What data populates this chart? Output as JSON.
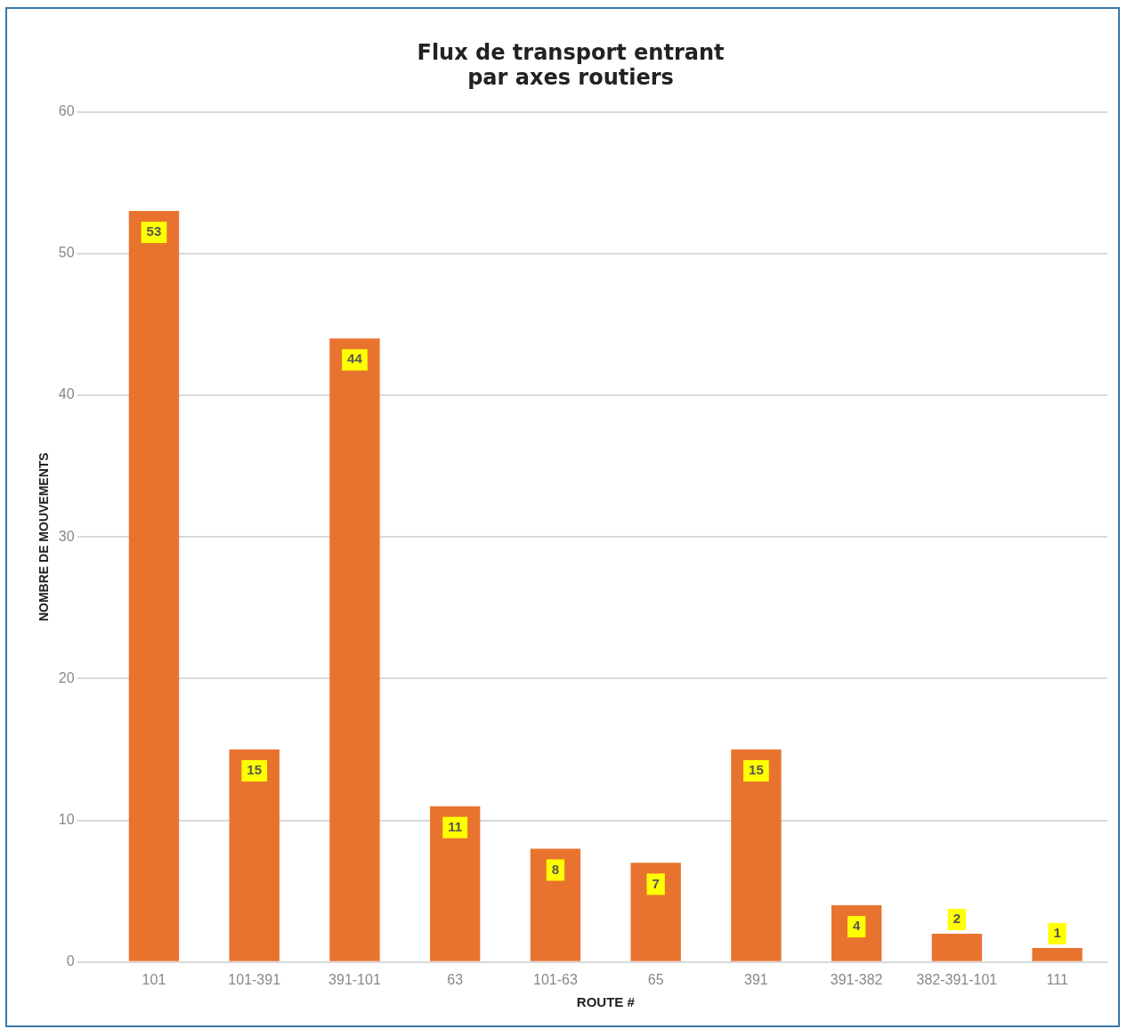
{
  "chart_data": {
    "type": "bar",
    "title": "Flux de transport entrant\npar axes routiers",
    "xlabel": "ROUTE #",
    "ylabel": "NOMBRE DE MOUVEMENTS",
    "categories": [
      "101",
      "101-391",
      "391-101",
      "63",
      "101-63",
      "65",
      "391",
      "391-382",
      "382-391-101",
      "111"
    ],
    "values": [
      53,
      15,
      44,
      11,
      8,
      7,
      15,
      4,
      2,
      1
    ],
    "color": "#e8732f",
    "ylim": [
      0,
      60
    ],
    "yticks": [
      0,
      10,
      20,
      30,
      40,
      50,
      60
    ],
    "grid": "y",
    "legend": false,
    "data_labels": true
  }
}
